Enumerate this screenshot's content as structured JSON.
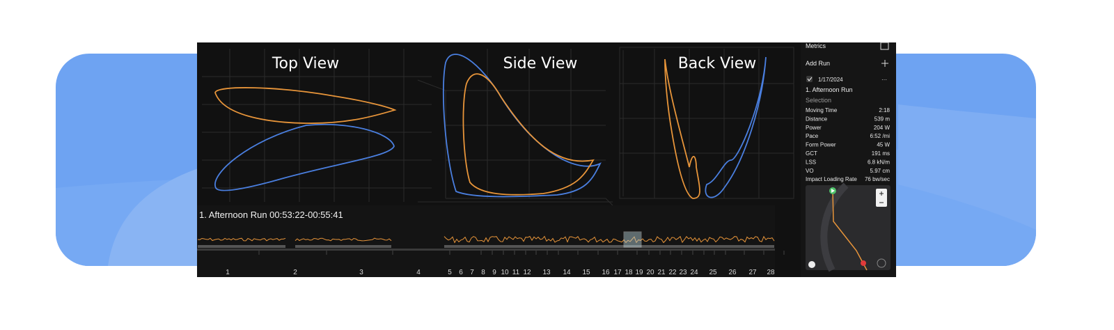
{
  "views": [
    {
      "title": "Top View"
    },
    {
      "title": "Side View"
    },
    {
      "title": "Back View"
    }
  ],
  "timeline": {
    "label": "1. Afternoon Run 00:53:22-00:55:41",
    "laps": [
      "1",
      "2",
      "3",
      "4",
      "5",
      "6",
      "7",
      "8",
      "9",
      "10",
      "11",
      "12",
      "13",
      "14",
      "15",
      "16",
      "17",
      "18",
      "19",
      "20",
      "21",
      "22",
      "23",
      "24",
      "25",
      "26",
      "27",
      "28"
    ]
  },
  "sidebar": {
    "metrics_title": "Metrics",
    "add_run": "Add Run",
    "run_date": "1/17/2024",
    "run_name": "1. Afternoon Run",
    "selection": "Selection",
    "metrics": [
      [
        "Moving Time",
        "2:18"
      ],
      [
        "Distance",
        "539 m"
      ],
      [
        "Power",
        "204 W"
      ],
      [
        "Pace",
        "6:52 /mi"
      ],
      [
        "Form Power",
        "45 W"
      ],
      [
        "GCT",
        "191 ms"
      ],
      [
        "LSS",
        "6.8 kN/m"
      ],
      [
        "VO",
        "5.97 cm"
      ],
      [
        "Impact Loading Rate",
        "76 bw/sec"
      ]
    ]
  }
}
